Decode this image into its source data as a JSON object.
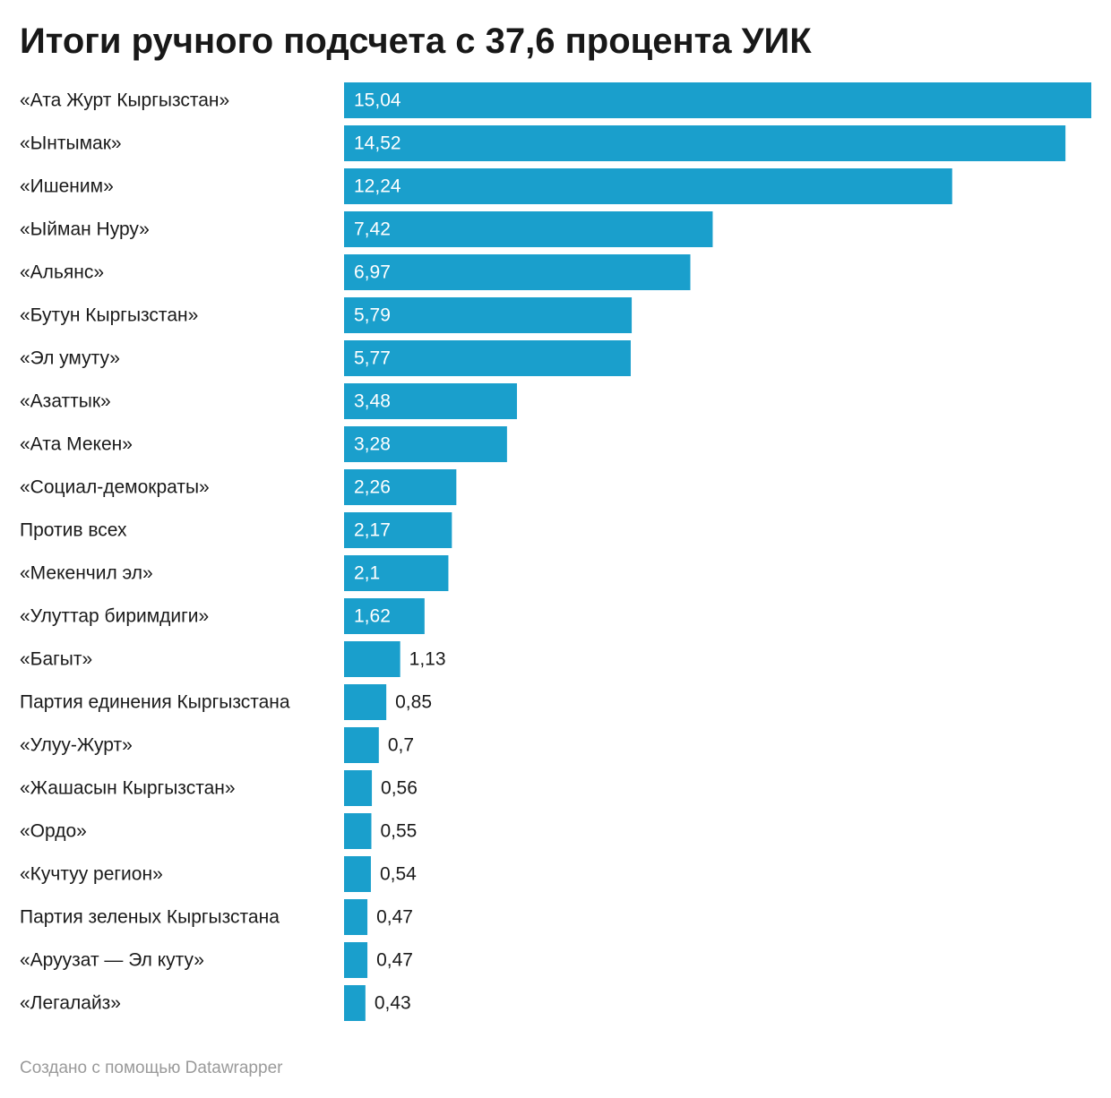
{
  "title": "Итоги ручного подсчета с 37,6 процента УИК",
  "footer": "Создано с помощью Datawrapper",
  "colors": {
    "bar": "#1a9fcc",
    "label": "#1a1a1a",
    "value_inside": "#ffffff",
    "value_outside": "#1a1a1a"
  },
  "chart_data": {
    "type": "bar",
    "orientation": "horizontal",
    "title": "Итоги ручного подсчета с 37,6 процента УИК",
    "categories": [
      "«Ата Журт Кыргызстан»",
      "«Ынтымак»",
      "«Ишеним»",
      "«Ыйман Нуру»",
      "«Альянс»",
      "«Бутун Кыргызстан»",
      "«Эл умуту»",
      "«Азаттык»",
      "«Ата Мекен»",
      "«Социал-демократы»",
      "Против всех",
      "«Мекенчил эл»",
      "«Улуттар биримдиги»",
      "«Багыт»",
      "Партия единения Кыргызстана",
      "«Улуу-Журт»",
      "«Жашасын Кыргызстан»",
      "«Ордо»",
      "«Кучтуу регион»",
      "Партия зеленых Кыргызстана",
      "«Аруузат — Эл куту»",
      "«Легалайз»"
    ],
    "values": [
      15.04,
      14.52,
      12.24,
      7.42,
      6.97,
      5.79,
      5.77,
      3.48,
      3.28,
      2.26,
      2.17,
      2.1,
      1.62,
      1.13,
      0.85,
      0.7,
      0.56,
      0.55,
      0.54,
      0.47,
      0.47,
      0.43
    ],
    "value_labels": [
      "15,04",
      "14,52",
      "12,24",
      "7,42",
      "6,97",
      "5,79",
      "5,77",
      "3,48",
      "3,28",
      "2,26",
      "2,17",
      "2,1",
      "1,62",
      "1,13",
      "0,85",
      "0,7",
      "0,56",
      "0,55",
      "0,54",
      "0,47",
      "0,47",
      "0,43"
    ],
    "xlim": [
      0,
      15.04
    ],
    "grid": false,
    "legend": "none"
  }
}
